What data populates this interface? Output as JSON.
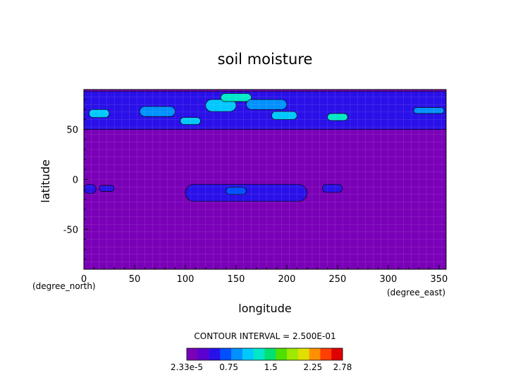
{
  "chart_data": {
    "type": "heatmap",
    "title": "soil moisture",
    "xlabel": "longitude",
    "ylabel": "latitude",
    "x_units": "(degree_east)",
    "y_units": "(degree_north)",
    "xlim": [
      0,
      357
    ],
    "ylim": [
      -90,
      90
    ],
    "x_ticks": [
      0,
      50,
      100,
      150,
      200,
      250,
      300,
      350
    ],
    "y_ticks": [
      -50,
      0,
      50
    ],
    "contour_interval_text": "CONTOUR INTERVAL = 2.500E-01",
    "colorbar": {
      "min": 2.33e-05,
      "max": 2.78,
      "interval": 0.25,
      "tick_labels": [
        "2.33e-5",
        "0.75",
        "1.5",
        "2.25",
        "2.78"
      ],
      "tick_values": [
        2.33e-05,
        0.75,
        1.5,
        2.25,
        2.78
      ],
      "colors": [
        "#7a00b8",
        "#5a00d0",
        "#2a10e8",
        "#0050ff",
        "#0090ff",
        "#00c8ff",
        "#00e8c8",
        "#00e070",
        "#50e000",
        "#a0e800",
        "#e0e000",
        "#ff9000",
        "#ff4000",
        "#e00000"
      ]
    },
    "features": [
      {
        "name": "arctic-band",
        "lon": [
          0,
          357
        ],
        "lat": [
          50,
          88
        ],
        "level": 2
      },
      {
        "name": "arctic-blob",
        "lon": [
          5,
          25
        ],
        "lat": [
          62,
          70
        ],
        "level": 5
      },
      {
        "name": "arctic-blob",
        "lon": [
          55,
          90
        ],
        "lat": [
          63,
          73
        ],
        "level": 4
      },
      {
        "name": "arctic-blob",
        "lon": [
          95,
          115
        ],
        "lat": [
          55,
          62
        ],
        "level": 5
      },
      {
        "name": "arctic-blob",
        "lon": [
          120,
          150
        ],
        "lat": [
          68,
          80
        ],
        "level": 5
      },
      {
        "name": "arctic-blob",
        "lon": [
          135,
          165
        ],
        "lat": [
          78,
          86
        ],
        "level": 6
      },
      {
        "name": "arctic-blob",
        "lon": [
          160,
          200
        ],
        "lat": [
          70,
          80
        ],
        "level": 4
      },
      {
        "name": "arctic-blob",
        "lon": [
          185,
          210
        ],
        "lat": [
          60,
          68
        ],
        "level": 5
      },
      {
        "name": "arctic-blob",
        "lon": [
          240,
          260
        ],
        "lat": [
          59,
          66
        ],
        "level": 6
      },
      {
        "name": "arctic-blob",
        "lon": [
          325,
          355
        ],
        "lat": [
          66,
          72
        ],
        "level": 4
      },
      {
        "name": "tropical-band",
        "lon": [
          100,
          220
        ],
        "lat": [
          -22,
          -5
        ],
        "level": 2
      },
      {
        "name": "tropical-blob",
        "lon": [
          140,
          160
        ],
        "lat": [
          -15,
          -8
        ],
        "level": 3
      },
      {
        "name": "tropical-blob",
        "lon": [
          235,
          255
        ],
        "lat": [
          -13,
          -5
        ],
        "level": 2
      },
      {
        "name": "tropical-blob",
        "lon": [
          0,
          12
        ],
        "lat": [
          -14,
          -5
        ],
        "level": 2
      },
      {
        "name": "tropical-blob",
        "lon": [
          15,
          30
        ],
        "lat": [
          -12,
          -6
        ],
        "level": 2
      }
    ]
  }
}
